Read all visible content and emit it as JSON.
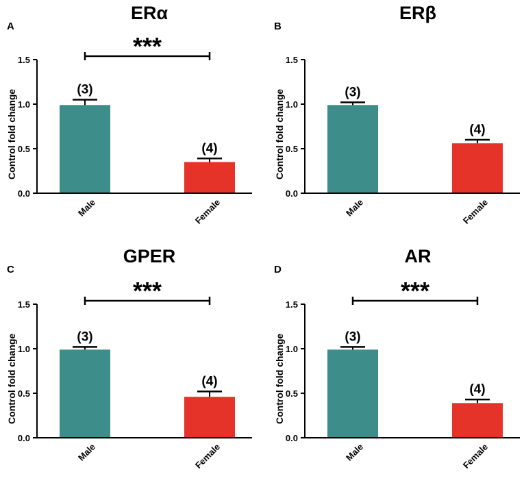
{
  "chart_data": [
    {
      "type": "bar",
      "panel": "A",
      "title": "ERα",
      "ylabel": "Control fold change",
      "xlabel": "",
      "categories": [
        "Male",
        "Female"
      ],
      "values": [
        0.99,
        0.35
      ],
      "errors": [
        0.06,
        0.04
      ],
      "n_labels": [
        "(3)",
        "(4)"
      ],
      "colors": [
        "#3d8d8a",
        "#e63329"
      ],
      "ylim": [
        0,
        1.5
      ],
      "yticks": [
        "0.0",
        "0.5",
        "1.0",
        "1.5"
      ],
      "significance": "***"
    },
    {
      "type": "bar",
      "panel": "B",
      "title": "ERβ",
      "ylabel": "Control fold change",
      "xlabel": "",
      "categories": [
        "Male",
        "Female"
      ],
      "values": [
        0.99,
        0.56
      ],
      "errors": [
        0.03,
        0.04
      ],
      "n_labels": [
        "(3)",
        "(4)"
      ],
      "colors": [
        "#3d8d8a",
        "#e63329"
      ],
      "ylim": [
        0,
        1.5
      ],
      "yticks": [
        "0.0",
        "0.5",
        "1.0",
        "1.5"
      ],
      "significance": ""
    },
    {
      "type": "bar",
      "panel": "C",
      "title": "GPER",
      "ylabel": "Control fold change",
      "xlabel": "",
      "categories": [
        "Male",
        "Female"
      ],
      "values": [
        0.99,
        0.46
      ],
      "errors": [
        0.03,
        0.06
      ],
      "n_labels": [
        "(3)",
        "(4)"
      ],
      "colors": [
        "#3d8d8a",
        "#e63329"
      ],
      "ylim": [
        0,
        1.5
      ],
      "yticks": [
        "0.0",
        "0.5",
        "1.0",
        "1.5"
      ],
      "significance": "***"
    },
    {
      "type": "bar",
      "panel": "D",
      "title": "AR",
      "ylabel": "Control fold change",
      "xlabel": "",
      "categories": [
        "Male",
        "Female"
      ],
      "values": [
        0.99,
        0.39
      ],
      "errors": [
        0.03,
        0.04
      ],
      "n_labels": [
        "(3)",
        "(4)"
      ],
      "colors": [
        "#3d8d8a",
        "#e63329"
      ],
      "ylim": [
        0,
        1.5
      ],
      "yticks": [
        "0.0",
        "0.5",
        "1.0",
        "1.5"
      ],
      "significance": "***"
    }
  ]
}
